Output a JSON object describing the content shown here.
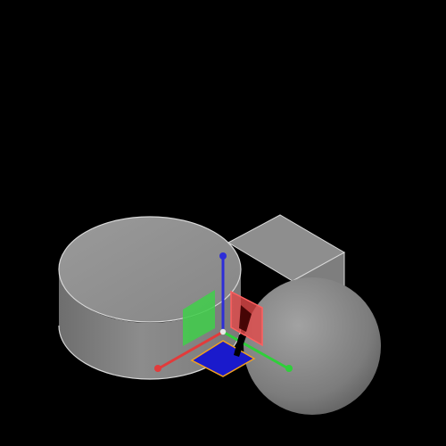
{
  "viewport": {
    "background": "#000000",
    "objects": [
      {
        "name": "cube",
        "shape": "box"
      },
      {
        "name": "cylinder",
        "shape": "cylinder"
      },
      {
        "name": "sphere",
        "shape": "sphere"
      }
    ],
    "gizmo": {
      "type": "translate",
      "axes": [
        {
          "axis": "x",
          "color": "#e23b3b"
        },
        {
          "axis": "y",
          "color": "#2fcf3a"
        },
        {
          "axis": "z",
          "color": "#2d2dd8"
        }
      ],
      "planes": [
        {
          "plane": "yz",
          "color": "#3fcf4a"
        },
        {
          "plane": "xz",
          "color": "#e24a4a"
        },
        {
          "plane": "xy",
          "color": "#1a1acc",
          "outline": "#f0a020"
        }
      ]
    },
    "colors": {
      "object_fill": "#8a8a8a",
      "object_edge": "#d8d8d8"
    }
  }
}
